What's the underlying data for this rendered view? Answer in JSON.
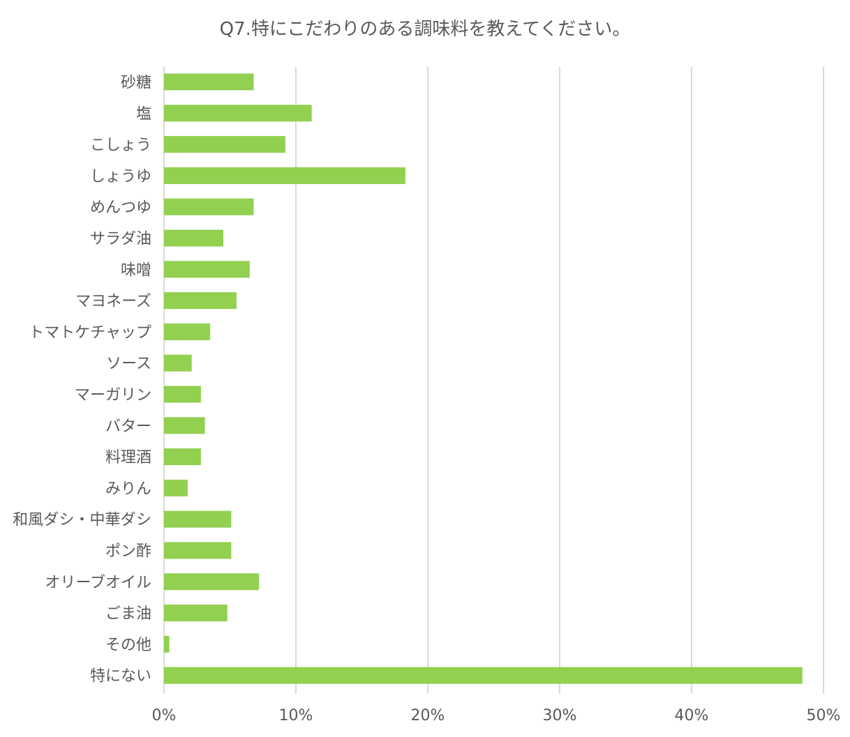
{
  "chart_data": {
    "type": "bar",
    "orientation": "horizontal",
    "title": "Q7.特にこだわりのある調味料を教えてください。",
    "categories": [
      "砂糖",
      "塩",
      "こしょう",
      "しょうゆ",
      "めんつゆ",
      "サラダ油",
      "味噌",
      "マヨネーズ",
      "トマトケチャップ",
      "ソース",
      "マーガリン",
      "バター",
      "料理酒",
      "みりん",
      "和風ダシ・中華ダシ",
      "ポン酢",
      "オリーブオイル",
      "ごま油",
      "その他",
      "特にない"
    ],
    "values": [
      6.8,
      11.2,
      9.2,
      18.3,
      6.8,
      4.5,
      6.5,
      5.5,
      3.5,
      2.1,
      2.8,
      3.1,
      2.8,
      1.8,
      5.1,
      5.1,
      7.2,
      4.8,
      0.4,
      48.4
    ],
    "unit": "%",
    "xlim": [
      0,
      50
    ],
    "x_ticks": [
      "0%",
      "10%",
      "20%",
      "30%",
      "40%",
      "50%"
    ],
    "grid": true,
    "bar_color": "#92d050"
  }
}
